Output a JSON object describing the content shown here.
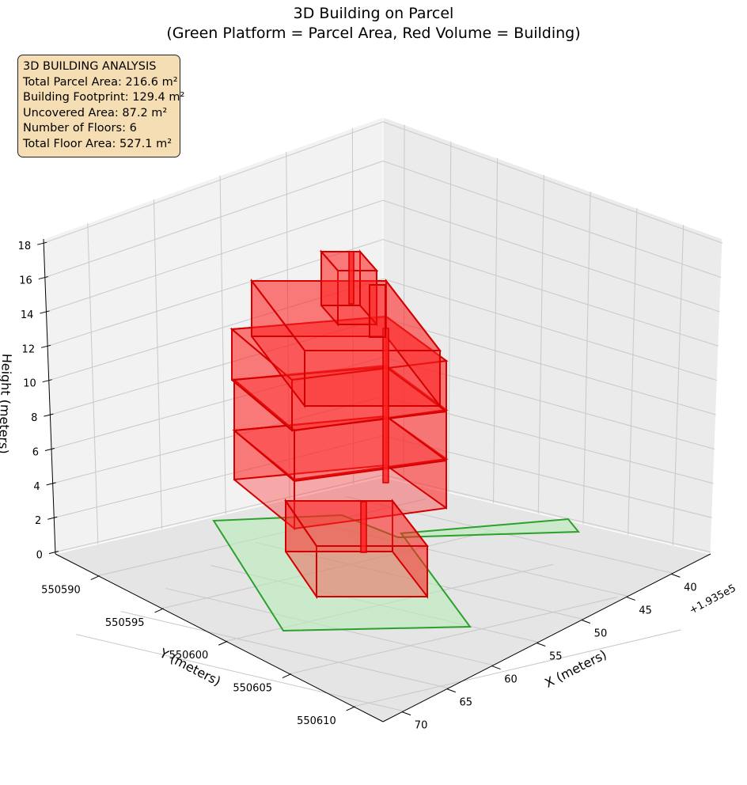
{
  "chart_data": {
    "type": "3d-polygons",
    "title": "3D Building on Parcel",
    "subtitle": "(Green Platform = Parcel Area, Red Volume = Building)",
    "xlabel": "X (meters)",
    "ylabel": "Y (meters)",
    "zlabel": "Height (meters)",
    "x_offset_label": "+1.935e5",
    "x_ticks": [
      "40",
      "45",
      "50",
      "55",
      "60",
      "65",
      "70"
    ],
    "y_ticks": [
      "550590",
      "550595",
      "550600",
      "550605",
      "550610"
    ],
    "z_ticks": [
      "0",
      "2",
      "4",
      "6",
      "8",
      "10",
      "12",
      "14",
      "16",
      "18"
    ],
    "grid": true,
    "info_box": {
      "heading": "3D BUILDING ANALYSIS",
      "lines": [
        "Total Parcel Area: 216.6 m²",
        "Building Footprint: 129.4 m²",
        "Uncovered Area: 87.2 m²",
        "Number of Floors: 6",
        "Total Floor Area: 527.1 m²"
      ]
    },
    "colors": {
      "parcel_edge": "#2ca02c",
      "parcel_fill": "#b9ecb9",
      "building_edge": "#d40000",
      "building_fill": "#ff2020"
    }
  }
}
